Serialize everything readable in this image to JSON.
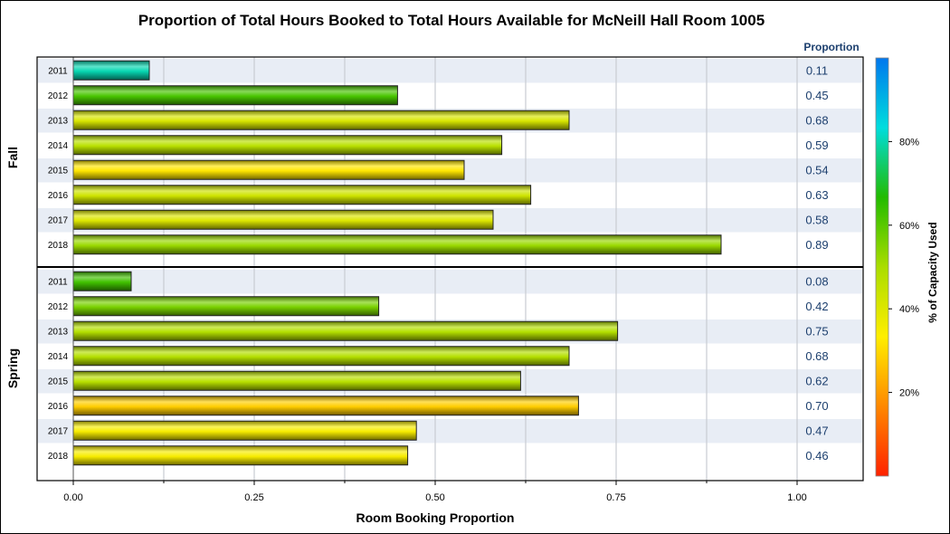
{
  "chart_data": {
    "type": "bar",
    "orientation": "horizontal",
    "title": "Proportion of Total Hours Booked to Total Hours Available for McNeill Hall Room 1005",
    "xlabel": "Room Booking Proportion",
    "value_column_header": "Proportion",
    "xlim": [
      0,
      1.0
    ],
    "xticks": [
      "0.00",
      "0.25",
      "0.50",
      "0.75",
      "1.00"
    ],
    "grid": true,
    "panels": [
      {
        "label": "Fall",
        "categories": [
          "2011",
          "2012",
          "2013",
          "2014",
          "2015",
          "2016",
          "2017",
          "2018"
        ],
        "values": [
          0.105,
          0.448,
          0.685,
          0.592,
          0.54,
          0.632,
          0.58,
          0.895
        ],
        "value_labels": [
          "0.11",
          "0.45",
          "0.68",
          "0.59",
          "0.54",
          "0.63",
          "0.58",
          "0.89"
        ],
        "capacity_used": [
          80,
          62,
          41,
          47,
          32,
          43,
          40,
          52
        ]
      },
      {
        "label": "Spring",
        "categories": [
          "2011",
          "2012",
          "2013",
          "2014",
          "2015",
          "2016",
          "2017",
          "2018"
        ],
        "values": [
          0.08,
          0.422,
          0.752,
          0.685,
          0.618,
          0.698,
          0.474,
          0.462
        ],
        "value_labels": [
          "0.08",
          "0.42",
          "0.75",
          "0.68",
          "0.62",
          "0.70",
          "0.47",
          "0.46"
        ],
        "capacity_used": [
          63,
          56,
          48,
          48,
          47,
          28,
          35,
          35
        ]
      }
    ],
    "colorbar": {
      "title": "% of Capacity Used",
      "range": [
        0,
        100
      ],
      "ticks": [
        "20%",
        "40%",
        "60%",
        "80%"
      ],
      "tick_values": [
        20,
        40,
        60,
        80
      ],
      "colors": [
        "#ff2200",
        "#ff8800",
        "#ffee00",
        "#aadd00",
        "#22bb00",
        "#00dddd",
        "#0077ee"
      ]
    },
    "band_color": "#e8edf5"
  }
}
